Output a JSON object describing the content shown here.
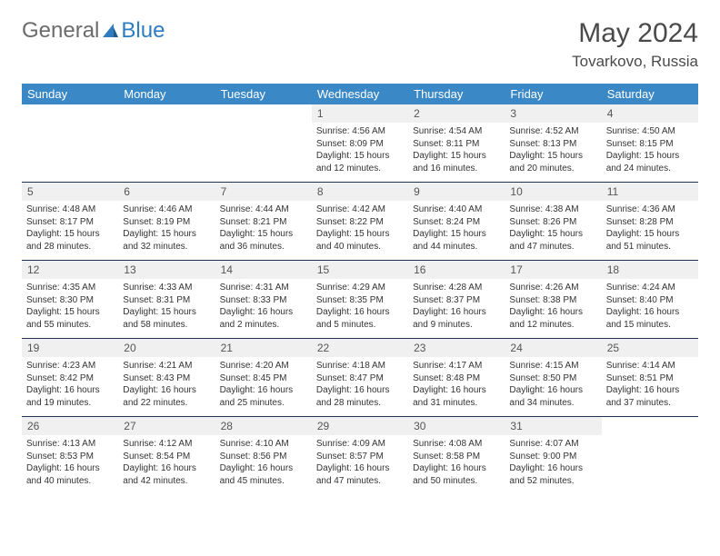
{
  "logo": {
    "general": "General",
    "blue": "Blue"
  },
  "title": "May 2024",
  "location": "Tovarkovo, Russia",
  "colors": {
    "header_bg": "#3b88c6",
    "daynum_bg": "#f0f0f0",
    "week_border": "#203250",
    "logo_gray": "#6b6b6b",
    "logo_blue": "#2d7dc0"
  },
  "dow": [
    "Sunday",
    "Monday",
    "Tuesday",
    "Wednesday",
    "Thursday",
    "Friday",
    "Saturday"
  ],
  "weeks": [
    [
      {
        "n": "",
        "sunrise": "",
        "sunset": "",
        "daylight": "",
        "blank": true
      },
      {
        "n": "",
        "sunrise": "",
        "sunset": "",
        "daylight": "",
        "blank": true
      },
      {
        "n": "",
        "sunrise": "",
        "sunset": "",
        "daylight": "",
        "blank": true
      },
      {
        "n": "1",
        "sunrise": "Sunrise: 4:56 AM",
        "sunset": "Sunset: 8:09 PM",
        "daylight": "Daylight: 15 hours and 12 minutes."
      },
      {
        "n": "2",
        "sunrise": "Sunrise: 4:54 AM",
        "sunset": "Sunset: 8:11 PM",
        "daylight": "Daylight: 15 hours and 16 minutes."
      },
      {
        "n": "3",
        "sunrise": "Sunrise: 4:52 AM",
        "sunset": "Sunset: 8:13 PM",
        "daylight": "Daylight: 15 hours and 20 minutes."
      },
      {
        "n": "4",
        "sunrise": "Sunrise: 4:50 AM",
        "sunset": "Sunset: 8:15 PM",
        "daylight": "Daylight: 15 hours and 24 minutes."
      }
    ],
    [
      {
        "n": "5",
        "sunrise": "Sunrise: 4:48 AM",
        "sunset": "Sunset: 8:17 PM",
        "daylight": "Daylight: 15 hours and 28 minutes."
      },
      {
        "n": "6",
        "sunrise": "Sunrise: 4:46 AM",
        "sunset": "Sunset: 8:19 PM",
        "daylight": "Daylight: 15 hours and 32 minutes."
      },
      {
        "n": "7",
        "sunrise": "Sunrise: 4:44 AM",
        "sunset": "Sunset: 8:21 PM",
        "daylight": "Daylight: 15 hours and 36 minutes."
      },
      {
        "n": "8",
        "sunrise": "Sunrise: 4:42 AM",
        "sunset": "Sunset: 8:22 PM",
        "daylight": "Daylight: 15 hours and 40 minutes."
      },
      {
        "n": "9",
        "sunrise": "Sunrise: 4:40 AM",
        "sunset": "Sunset: 8:24 PM",
        "daylight": "Daylight: 15 hours and 44 minutes."
      },
      {
        "n": "10",
        "sunrise": "Sunrise: 4:38 AM",
        "sunset": "Sunset: 8:26 PM",
        "daylight": "Daylight: 15 hours and 47 minutes."
      },
      {
        "n": "11",
        "sunrise": "Sunrise: 4:36 AM",
        "sunset": "Sunset: 8:28 PM",
        "daylight": "Daylight: 15 hours and 51 minutes."
      }
    ],
    [
      {
        "n": "12",
        "sunrise": "Sunrise: 4:35 AM",
        "sunset": "Sunset: 8:30 PM",
        "daylight": "Daylight: 15 hours and 55 minutes."
      },
      {
        "n": "13",
        "sunrise": "Sunrise: 4:33 AM",
        "sunset": "Sunset: 8:31 PM",
        "daylight": "Daylight: 15 hours and 58 minutes."
      },
      {
        "n": "14",
        "sunrise": "Sunrise: 4:31 AM",
        "sunset": "Sunset: 8:33 PM",
        "daylight": "Daylight: 16 hours and 2 minutes."
      },
      {
        "n": "15",
        "sunrise": "Sunrise: 4:29 AM",
        "sunset": "Sunset: 8:35 PM",
        "daylight": "Daylight: 16 hours and 5 minutes."
      },
      {
        "n": "16",
        "sunrise": "Sunrise: 4:28 AM",
        "sunset": "Sunset: 8:37 PM",
        "daylight": "Daylight: 16 hours and 9 minutes."
      },
      {
        "n": "17",
        "sunrise": "Sunrise: 4:26 AM",
        "sunset": "Sunset: 8:38 PM",
        "daylight": "Daylight: 16 hours and 12 minutes."
      },
      {
        "n": "18",
        "sunrise": "Sunrise: 4:24 AM",
        "sunset": "Sunset: 8:40 PM",
        "daylight": "Daylight: 16 hours and 15 minutes."
      }
    ],
    [
      {
        "n": "19",
        "sunrise": "Sunrise: 4:23 AM",
        "sunset": "Sunset: 8:42 PM",
        "daylight": "Daylight: 16 hours and 19 minutes."
      },
      {
        "n": "20",
        "sunrise": "Sunrise: 4:21 AM",
        "sunset": "Sunset: 8:43 PM",
        "daylight": "Daylight: 16 hours and 22 minutes."
      },
      {
        "n": "21",
        "sunrise": "Sunrise: 4:20 AM",
        "sunset": "Sunset: 8:45 PM",
        "daylight": "Daylight: 16 hours and 25 minutes."
      },
      {
        "n": "22",
        "sunrise": "Sunrise: 4:18 AM",
        "sunset": "Sunset: 8:47 PM",
        "daylight": "Daylight: 16 hours and 28 minutes."
      },
      {
        "n": "23",
        "sunrise": "Sunrise: 4:17 AM",
        "sunset": "Sunset: 8:48 PM",
        "daylight": "Daylight: 16 hours and 31 minutes."
      },
      {
        "n": "24",
        "sunrise": "Sunrise: 4:15 AM",
        "sunset": "Sunset: 8:50 PM",
        "daylight": "Daylight: 16 hours and 34 minutes."
      },
      {
        "n": "25",
        "sunrise": "Sunrise: 4:14 AM",
        "sunset": "Sunset: 8:51 PM",
        "daylight": "Daylight: 16 hours and 37 minutes."
      }
    ],
    [
      {
        "n": "26",
        "sunrise": "Sunrise: 4:13 AM",
        "sunset": "Sunset: 8:53 PM",
        "daylight": "Daylight: 16 hours and 40 minutes."
      },
      {
        "n": "27",
        "sunrise": "Sunrise: 4:12 AM",
        "sunset": "Sunset: 8:54 PM",
        "daylight": "Daylight: 16 hours and 42 minutes."
      },
      {
        "n": "28",
        "sunrise": "Sunrise: 4:10 AM",
        "sunset": "Sunset: 8:56 PM",
        "daylight": "Daylight: 16 hours and 45 minutes."
      },
      {
        "n": "29",
        "sunrise": "Sunrise: 4:09 AM",
        "sunset": "Sunset: 8:57 PM",
        "daylight": "Daylight: 16 hours and 47 minutes."
      },
      {
        "n": "30",
        "sunrise": "Sunrise: 4:08 AM",
        "sunset": "Sunset: 8:58 PM",
        "daylight": "Daylight: 16 hours and 50 minutes."
      },
      {
        "n": "31",
        "sunrise": "Sunrise: 4:07 AM",
        "sunset": "Sunset: 9:00 PM",
        "daylight": "Daylight: 16 hours and 52 minutes."
      },
      {
        "n": "",
        "sunrise": "",
        "sunset": "",
        "daylight": "",
        "blank": true
      }
    ]
  ]
}
